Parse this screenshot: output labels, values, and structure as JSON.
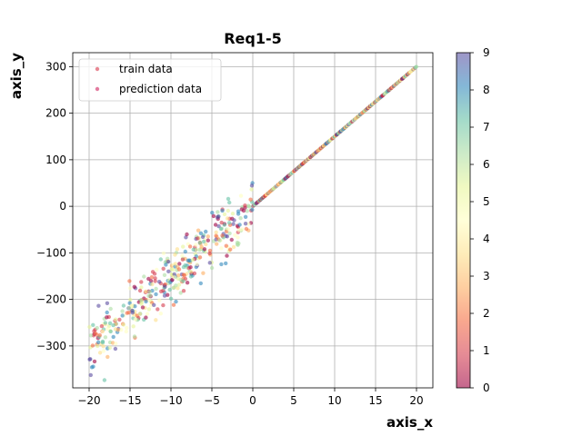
{
  "chart_data": {
    "type": "scatter",
    "title": "Req1-5",
    "xlabel": "axis_x",
    "ylabel": "axis_y",
    "xlim": [
      -22,
      22
    ],
    "ylim": [
      -390,
      330
    ],
    "x_ticks": [
      -20,
      -15,
      -10,
      -5,
      0,
      5,
      10,
      15,
      20
    ],
    "x_tick_labels": [
      "−20",
      "−15",
      "−10",
      "−5",
      "0",
      "5",
      "10",
      "15",
      "20"
    ],
    "y_ticks": [
      -300,
      -200,
      -100,
      0,
      100,
      200,
      300
    ],
    "y_tick_labels": [
      "−300",
      "−200",
      "−100",
      "0",
      "100",
      "200",
      "300"
    ],
    "grid": true,
    "legend_position": "top-left",
    "series": [
      {
        "name": "train data",
        "description_relation": "y ≈ 15x + noise, x in [-20, 0]",
        "x_range": [
          -20,
          0
        ],
        "slope": 15,
        "noise_sd_y": 30,
        "point_count": 400
      },
      {
        "name": "prediction data",
        "description_relation": "y = 15x, x in [0, 20]",
        "x_range": [
          0,
          20
        ],
        "slope": 15,
        "point_count": 400
      }
    ],
    "colorbar": {
      "min": 0,
      "max": 9,
      "ticks": [
        0,
        1,
        2,
        3,
        4,
        5,
        6,
        7,
        8,
        9
      ],
      "colormap": "Spectral",
      "alpha": 0.6
    }
  }
}
